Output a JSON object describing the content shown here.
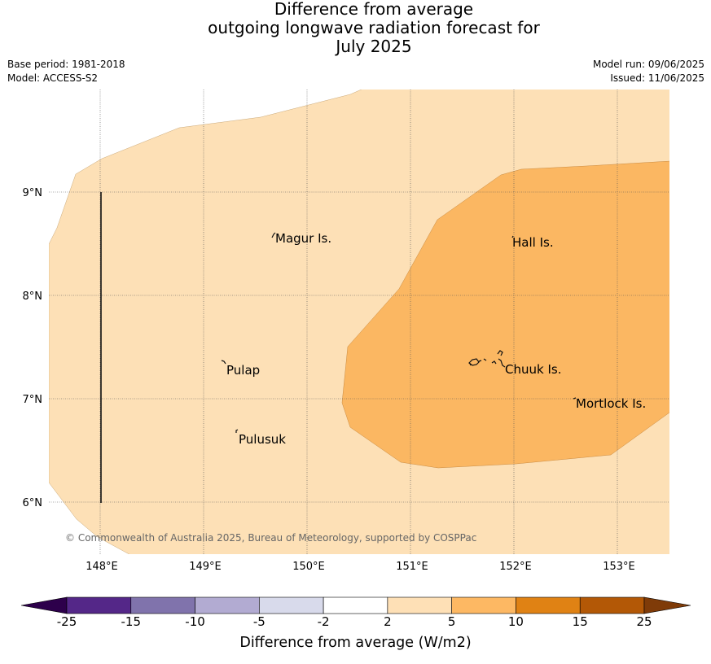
{
  "title": {
    "line1": "Difference from average",
    "line2": "outgoing longwave radiation forecast for",
    "line3": "July 2025"
  },
  "meta": {
    "base_period": "Base period: 1981-2018",
    "model": "Model: ACCESS-S2",
    "model_run": "Model run: 09/06/2025",
    "issued": "Issued: 11/06/2025"
  },
  "map": {
    "lon_labels": [
      "148°E",
      "149°E",
      "150°E",
      "151°E",
      "152°E",
      "153°E"
    ],
    "lat_labels": [
      "9°N",
      "8°N",
      "7°N",
      "6°N"
    ],
    "places": [
      {
        "name": "Magur Is."
      },
      {
        "name": "Hall Is."
      },
      {
        "name": "Pulap"
      },
      {
        "name": "Chuuk Is."
      },
      {
        "name": "Mortlock Is."
      },
      {
        "name": "Pulusuk"
      }
    ],
    "copyright": "© Commonwealth of Australia 2025, Bureau of Meteorology, supported by COSPPac",
    "colors": {
      "band_2_5": "#fde0b6",
      "band_5_10": "#fbb762",
      "grid": "#555555"
    }
  },
  "colorbar": {
    "label": "Difference from average (W/m2)",
    "ticks": [
      "-25",
      "-15",
      "-10",
      "-5",
      "-2",
      "2",
      "5",
      "10",
      "15",
      "25"
    ],
    "colors": [
      "#2d004b",
      "#542788",
      "#8073ac",
      "#b2abd2",
      "#d8daeb",
      "#ffffff",
      "#fee0b6",
      "#fdb863",
      "#e08214",
      "#b35806",
      "#7f3b08"
    ]
  }
}
